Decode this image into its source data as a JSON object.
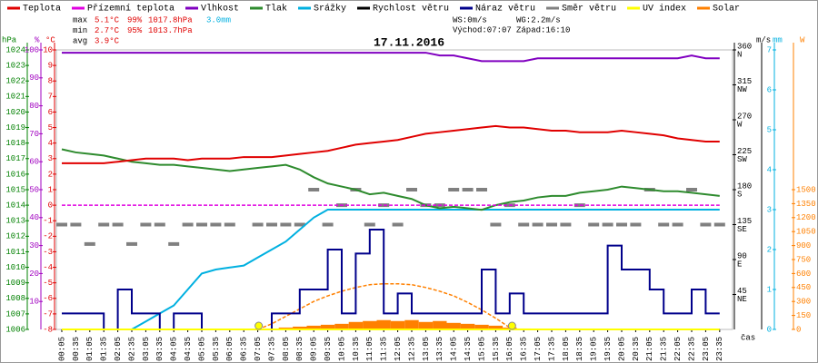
{
  "chart_data": {
    "type": "line",
    "title": "17.11.2016",
    "x_label": "čas",
    "categories": [
      "00:05",
      "00:35",
      "01:05",
      "01:35",
      "02:05",
      "02:35",
      "03:05",
      "03:35",
      "04:05",
      "04:35",
      "05:05",
      "05:35",
      "06:05",
      "06:35",
      "07:05",
      "07:35",
      "08:05",
      "08:35",
      "09:05",
      "09:35",
      "10:05",
      "10:35",
      "11:05",
      "11:35",
      "12:05",
      "12:35",
      "13:05",
      "13:35",
      "14:05",
      "14:35",
      "15:05",
      "15:35",
      "16:05",
      "16:35",
      "17:05",
      "17:35",
      "18:05",
      "18:35",
      "19:05",
      "19:35",
      "20:05",
      "20:35",
      "21:05",
      "21:35",
      "22:05",
      "22:35",
      "23:05",
      "23:35"
    ],
    "axes": {
      "hpa": {
        "label": "hPa",
        "side": "left",
        "color": "#008000",
        "lim": [
          1006,
          1024
        ],
        "ticks": [
          1006,
          1007,
          1008,
          1009,
          1010,
          1011,
          1012,
          1013,
          1014,
          1015,
          1016,
          1017,
          1018,
          1019,
          1020,
          1021,
          1022,
          1023,
          1024
        ]
      },
      "pct": {
        "label": "%",
        "side": "left",
        "color": "#a000c0",
        "lim": [
          0,
          100
        ],
        "ticks": [
          10,
          20,
          30,
          40,
          50,
          60,
          70,
          80,
          90,
          100
        ]
      },
      "temp": {
        "label": "°C",
        "side": "left",
        "color": "#e00000",
        "lim": [
          -8,
          10
        ],
        "ticks": [
          -8,
          -7,
          -6,
          -5,
          -4,
          -3,
          -2,
          -1,
          0,
          1,
          2,
          3,
          4,
          5,
          6,
          7,
          8,
          9,
          10
        ]
      },
      "dir": {
        "side": "right",
        "color": "#000000",
        "lim": [
          0,
          360
        ],
        "ticks": [
          45,
          90,
          135,
          180,
          225,
          270,
          315,
          360
        ],
        "tick_names": [
          "NE",
          "E",
          "SE",
          "S",
          "SW",
          "W",
          "NW",
          "N"
        ]
      },
      "ms": {
        "label": "m/s",
        "side": "right",
        "color": "#000000",
        "lim": [
          0,
          7
        ]
      },
      "mm": {
        "label": "mm",
        "side": "right",
        "color": "#00b0e0",
        "lim": [
          0,
          7
        ],
        "ticks": [
          0,
          1,
          2,
          3,
          4,
          5,
          6,
          7
        ]
      },
      "w": {
        "label": "W",
        "side": "right",
        "color": "#ff8000",
        "lim": [
          0,
          3000
        ],
        "ticks": [
          0,
          150,
          300,
          450,
          600,
          750,
          900,
          1050,
          1200,
          1350,
          1500
        ]
      }
    },
    "series": [
      {
        "name": "Teplota",
        "color": "#e00000",
        "axis": "temp",
        "style": "line",
        "values": [
          2.7,
          2.7,
          2.7,
          2.7,
          2.8,
          2.9,
          3.0,
          3.0,
          3.0,
          2.9,
          3.0,
          3.0,
          3.0,
          3.1,
          3.1,
          3.1,
          3.2,
          3.3,
          3.4,
          3.5,
          3.7,
          3.9,
          4.0,
          4.1,
          4.2,
          4.4,
          4.6,
          4.7,
          4.8,
          4.9,
          5.0,
          5.1,
          5.0,
          5.0,
          4.9,
          4.8,
          4.8,
          4.7,
          4.7,
          4.7,
          4.8,
          4.7,
          4.6,
          4.5,
          4.3,
          4.2,
          4.1,
          4.1
        ]
      },
      {
        "name": "Přízemní teplota",
        "color": "#e000e0",
        "axis": "temp",
        "style": "dashed",
        "values": [
          0,
          0,
          0,
          0,
          0,
          0,
          0,
          0,
          0,
          0,
          0,
          0,
          0,
          0,
          0,
          0,
          0,
          0,
          0,
          0,
          0,
          0,
          0,
          0,
          0,
          0,
          0,
          0,
          0,
          0,
          0,
          0,
          0,
          0,
          0,
          0,
          0,
          0,
          0,
          0,
          0,
          0,
          0,
          0,
          0,
          0,
          0,
          0
        ]
      },
      {
        "name": "Vlhkost",
        "color": "#8000c0",
        "axis": "pct",
        "style": "line",
        "values": [
          99,
          99,
          99,
          99,
          99,
          99,
          99,
          99,
          99,
          99,
          99,
          99,
          99,
          99,
          99,
          99,
          99,
          99,
          99,
          99,
          99,
          99,
          99,
          99,
          99,
          99,
          99,
          98,
          98,
          97,
          96,
          96,
          96,
          96,
          97,
          97,
          97,
          97,
          97,
          97,
          97,
          97,
          97,
          97,
          97,
          98,
          97,
          97
        ]
      },
      {
        "name": "Tlak",
        "color": "#2e8b2e",
        "axis": "hpa",
        "style": "line",
        "values": [
          1017.6,
          1017.4,
          1017.3,
          1017.2,
          1017.0,
          1016.8,
          1016.7,
          1016.6,
          1016.6,
          1016.5,
          1016.4,
          1016.3,
          1016.2,
          1016.3,
          1016.4,
          1016.5,
          1016.6,
          1016.3,
          1015.8,
          1015.4,
          1015.2,
          1015.0,
          1014.7,
          1014.8,
          1014.6,
          1014.4,
          1014.0,
          1013.8,
          1013.9,
          1013.8,
          1013.7,
          1014.0,
          1014.2,
          1014.3,
          1014.5,
          1014.6,
          1014.6,
          1014.8,
          1014.9,
          1015.0,
          1015.2,
          1015.1,
          1015.0,
          1014.9,
          1014.9,
          1014.8,
          1014.7,
          1014.6
        ]
      },
      {
        "name": "Srážky",
        "color": "#00b0e0",
        "axis": "mm",
        "style": "line",
        "values": [
          0,
          0,
          0,
          0,
          0,
          0,
          0.2,
          0.4,
          0.6,
          1.0,
          1.4,
          1.5,
          1.55,
          1.6,
          1.8,
          2.0,
          2.2,
          2.5,
          2.8,
          3.0,
          3.0,
          3.0,
          3.0,
          3.0,
          3.0,
          3.0,
          3.0,
          3.0,
          3.0,
          3.0,
          3.0,
          3.0,
          3.0,
          3.0,
          3.0,
          3.0,
          3.0,
          3.0,
          3.0,
          3.0,
          3.0,
          3.0,
          3.0,
          3.0,
          3.0,
          3.0,
          3.0,
          3.0
        ]
      },
      {
        "name": "Rychlost větru",
        "color": "#000000",
        "axis": "ms",
        "style": "line",
        "values": [
          0,
          0,
          0,
          0,
          0,
          0,
          0,
          0,
          0,
          0,
          0,
          0,
          0,
          0,
          0,
          0,
          0,
          0,
          0,
          0,
          0,
          0,
          0,
          0,
          0,
          0,
          0,
          0,
          0,
          0,
          0,
          0,
          0,
          0,
          0,
          0,
          0,
          0,
          0,
          0,
          0,
          0,
          0,
          0,
          0,
          0,
          0,
          0
        ]
      },
      {
        "name": "Náraz větru",
        "color": "#00008b",
        "axis": "ms",
        "style": "step",
        "values": [
          0.4,
          0.4,
          0.4,
          0,
          1.0,
          0.4,
          0.4,
          0,
          0.4,
          0.4,
          0,
          0,
          0,
          0,
          0,
          0.4,
          0.4,
          1.0,
          1.0,
          2.0,
          0.4,
          1.9,
          2.5,
          0.4,
          0.9,
          0.4,
          0.4,
          0.4,
          0.4,
          0.4,
          1.5,
          0.4,
          0.9,
          0.4,
          0.4,
          0.4,
          0.4,
          0.4,
          0.4,
          2.1,
          1.5,
          1.5,
          1.0,
          0.4,
          0.4,
          1.0,
          0.4,
          0.4
        ]
      },
      {
        "name": "Směr větru",
        "color": "#808080",
        "axis": "dir",
        "style": "dots",
        "values": [
          135,
          135,
          110,
          135,
          135,
          110,
          135,
          135,
          110,
          135,
          135,
          135,
          135,
          null,
          135,
          135,
          135,
          135,
          180,
          135,
          160,
          180,
          135,
          160,
          135,
          180,
          160,
          160,
          180,
          180,
          180,
          135,
          160,
          135,
          135,
          135,
          135,
          160,
          135,
          135,
          135,
          135,
          180,
          135,
          135,
          180,
          135,
          135
        ]
      },
      {
        "name": "UV index",
        "color": "#ffff00",
        "axis": "w",
        "style": "line",
        "values": [
          0,
          0,
          0,
          0,
          0,
          0,
          0,
          0,
          0,
          0,
          0,
          0,
          0,
          0,
          0,
          0,
          0,
          0,
          0,
          0,
          0,
          0,
          0,
          0,
          0,
          0,
          0,
          0,
          0,
          0,
          0,
          0,
          0,
          0,
          0,
          0,
          0,
          0,
          0,
          0,
          0,
          0,
          0,
          0,
          0,
          0,
          0,
          0
        ]
      },
      {
        "name": "Solar",
        "color": "#ff8000",
        "axis": "w",
        "style": "bars",
        "values": [
          0,
          0,
          0,
          0,
          0,
          0,
          0,
          0,
          0,
          0,
          0,
          0,
          0,
          0,
          0,
          10,
          20,
          30,
          40,
          50,
          60,
          80,
          90,
          100,
          90,
          100,
          80,
          90,
          70,
          60,
          50,
          40,
          20,
          10,
          0,
          0,
          0,
          0,
          0,
          0,
          0,
          0,
          0,
          0,
          0,
          0,
          0,
          0
        ]
      },
      {
        "color": "#ff8000",
        "axis": "w",
        "style": "dashed",
        "values": [
          null,
          null,
          null,
          null,
          null,
          null,
          null,
          null,
          null,
          null,
          null,
          null,
          null,
          null,
          0,
          60,
          140,
          220,
          300,
          360,
          410,
          450,
          480,
          490,
          490,
          480,
          450,
          410,
          360,
          290,
          210,
          120,
          20,
          null,
          null,
          null,
          null,
          null,
          null,
          null,
          null,
          null,
          null,
          null,
          null,
          null,
          null,
          null
        ]
      }
    ],
    "stats": [
      {
        "label": "max",
        "temp": "5.1°C",
        "humidity": "99%",
        "pressure": "1017.8hPa",
        "rain": "3.0mm"
      },
      {
        "label": "min",
        "temp": "2.7°C",
        "humidity": "95%",
        "pressure": "1013.7hPa"
      },
      {
        "label": "avg",
        "temp": "3.9°C"
      }
    ],
    "wind": {
      "ws": "WS:0m/s",
      "wg": "WG:2.2m/s"
    },
    "sun": {
      "rise": "Východ:07:07",
      "set": "Západ:16:10",
      "color": "#ffff00"
    }
  }
}
